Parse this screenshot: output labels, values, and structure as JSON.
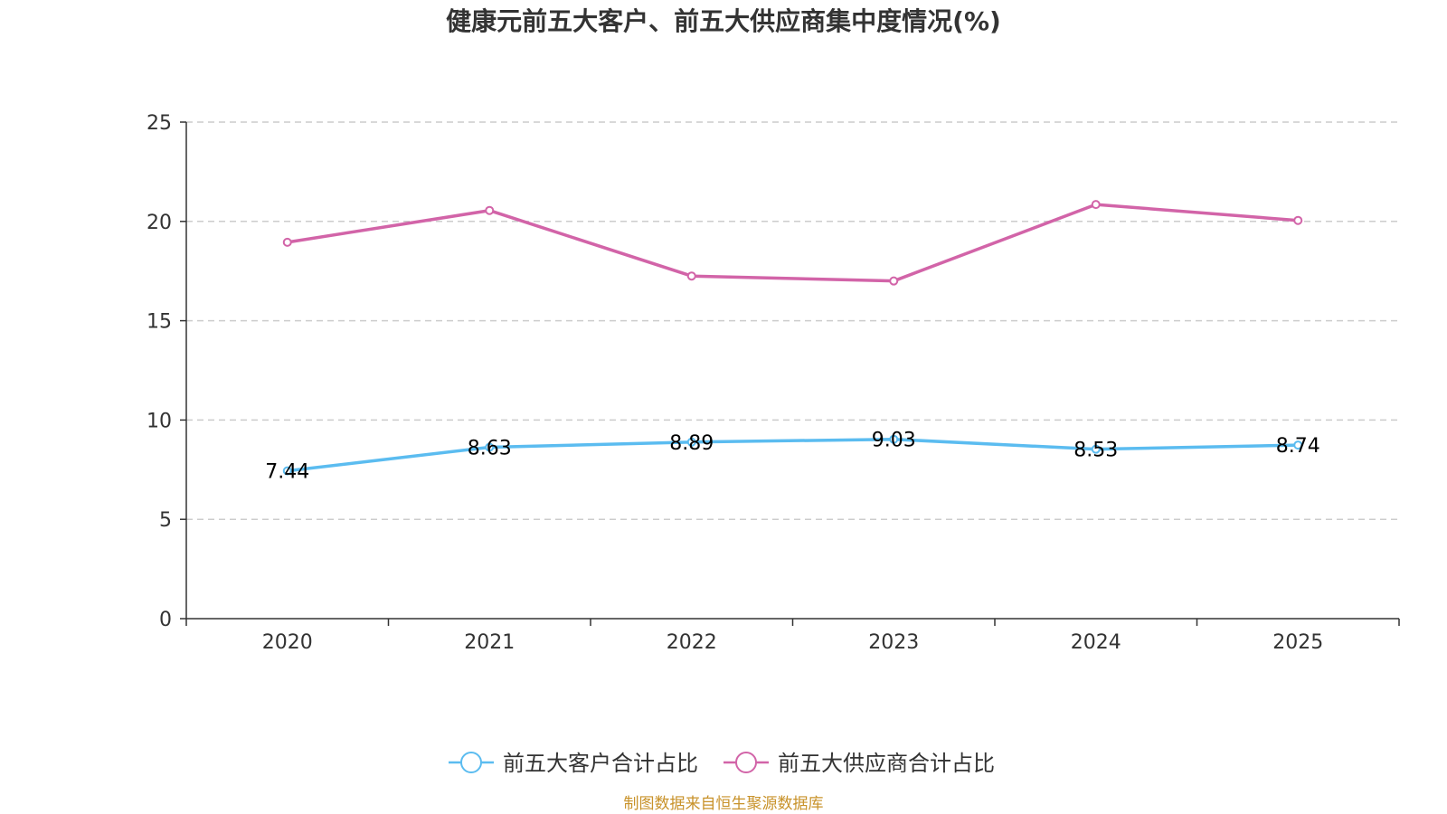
{
  "chart_data": {
    "type": "line",
    "title": "健康元前五大客户、前五大供应商集中度情况(%)",
    "categories": [
      "2020",
      "2021",
      "2022",
      "2023",
      "2024",
      "2025"
    ],
    "xlabel": "",
    "ylabel": "",
    "ylim": [
      0,
      25
    ],
    "yticks": [
      0,
      5,
      10,
      15,
      20,
      25
    ],
    "grid": true,
    "legend_position": "bottom-center",
    "series": [
      {
        "name": "前五大客户合计占比",
        "color": "#5bbcf0",
        "values": [
          7.44,
          8.63,
          8.89,
          9.03,
          8.53,
          8.74
        ],
        "labels": [
          "7.44",
          "8.63",
          "8.89",
          "9.03",
          "8.53",
          "8.74"
        ],
        "show_labels": true
      },
      {
        "name": "前五大供应商合计占比",
        "color": "#d264a8",
        "values": [
          18.95,
          20.55,
          17.25,
          17.0,
          20.85,
          20.05
        ],
        "show_labels": false
      }
    ]
  },
  "source": {
    "text": "制图数据来自恒生聚源数据库",
    "color": "#c8922a"
  }
}
